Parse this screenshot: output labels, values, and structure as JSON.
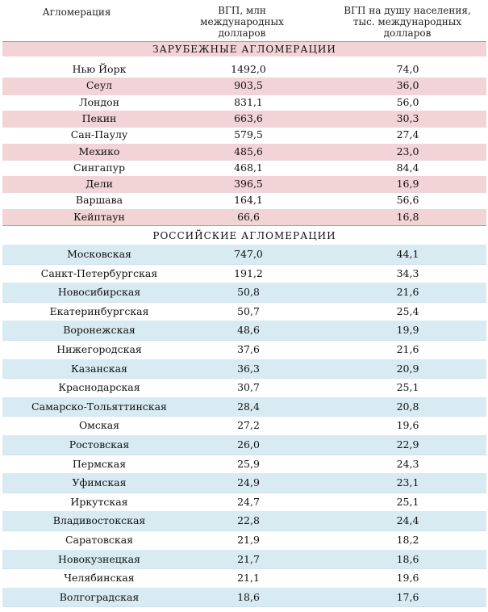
{
  "header": {
    "col1": "Агломерация",
    "col2": "ВГП, млн международных долларов",
    "col3": "ВГП на душу населения, тыс. международных долларов"
  },
  "foreign": {
    "title": "ЗАРУБЕЖНЫЕ АГЛОМЕРАЦИИ",
    "rows": [
      {
        "name": "Нью Йорк",
        "gdp": "1492,0",
        "pc": "74,0"
      },
      {
        "name": "Сеул",
        "gdp": "903,5",
        "pc": "36,0"
      },
      {
        "name": "Лондон",
        "gdp": "831,1",
        "pc": "56,0"
      },
      {
        "name": "Пекин",
        "gdp": "663,6",
        "pc": "30,3"
      },
      {
        "name": "Сан-Паулу",
        "gdp": "579,5",
        "pc": "27,4"
      },
      {
        "name": "Мехико",
        "gdp": "485,6",
        "pc": "23,0"
      },
      {
        "name": "Сингапур",
        "gdp": "468,1",
        "pc": "84,4"
      },
      {
        "name": "Дели",
        "gdp": "396,5",
        "pc": "16,9"
      },
      {
        "name": "Варшава",
        "gdp": "164,1",
        "pc": "56,6"
      },
      {
        "name": "Кейптаун",
        "gdp": "66,6",
        "pc": "16,8"
      }
    ]
  },
  "russian": {
    "title": "РОССИЙСКИЕ АГЛОМЕРАЦИИ",
    "rows": [
      {
        "name": "Московская",
        "gdp": "747,0",
        "pc": "44,1"
      },
      {
        "name": "Санкт-Петербургская",
        "gdp": "191,2",
        "pc": "34,3"
      },
      {
        "name": "Новосибирская",
        "gdp": "50,8",
        "pc": "21,6"
      },
      {
        "name": "Екатеринбургская",
        "gdp": "50,7",
        "pc": "25,4"
      },
      {
        "name": "Воронежская",
        "gdp": "48,6",
        "pc": "19,9"
      },
      {
        "name": "Нижегородская",
        "gdp": "37,6",
        "pc": "21,6"
      },
      {
        "name": "Казанская",
        "gdp": "36,3",
        "pc": "20,9"
      },
      {
        "name": "Краснодарская",
        "gdp": "30,7",
        "pc": "25,1"
      },
      {
        "name": "Самарско-Тольяттинская",
        "gdp": "28,4",
        "pc": "20,8"
      },
      {
        "name": "Омская",
        "gdp": "27,2",
        "pc": "19,6"
      },
      {
        "name": "Ростовская",
        "gdp": "26,0",
        "pc": "22,9"
      },
      {
        "name": "Пермская",
        "gdp": "25,9",
        "pc": "24,3"
      },
      {
        "name": "Уфимская",
        "gdp": "24,9",
        "pc": "23,1"
      },
      {
        "name": "Иркутская",
        "gdp": "24,7",
        "pc": "25,1"
      },
      {
        "name": "Владивостокская",
        "gdp": "22,8",
        "pc": "24,4"
      },
      {
        "name": "Саратовская",
        "gdp": "21,9",
        "pc": "18,2"
      },
      {
        "name": "Новокузнецкая",
        "gdp": "21,7",
        "pc": "18,6"
      },
      {
        "name": "Челябинская",
        "gdp": "21,1",
        "pc": "19,6"
      },
      {
        "name": "Волгоградская",
        "gdp": "18,6",
        "pc": "17,6"
      }
    ]
  }
}
